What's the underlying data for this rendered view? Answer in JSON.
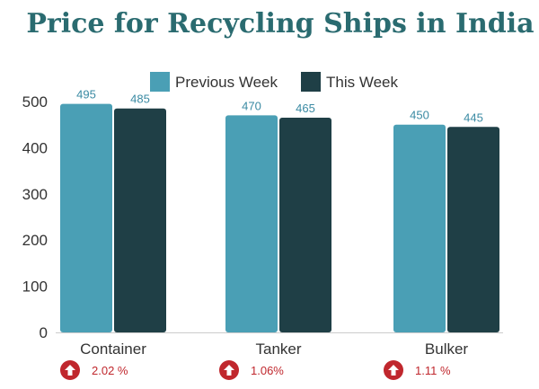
{
  "chart_data": {
    "type": "bar",
    "title": "Price for Recycling Ships in India",
    "categories": [
      "Container",
      "Tanker",
      "Bulker"
    ],
    "series": [
      {
        "name": "Previous Week",
        "values": [
          495,
          470,
          450
        ],
        "labels": [
          "495",
          "470",
          "450"
        ],
        "color": "#4a9fb5"
      },
      {
        "name": "This Week",
        "values": [
          485,
          465,
          445
        ],
        "labels": [
          "485",
          "465",
          "445"
        ],
        "color": "#1f3f46"
      }
    ],
    "ylim": [
      0,
      500
    ],
    "yticks": [
      "0",
      "100",
      "200",
      "300",
      "400",
      "500"
    ],
    "xlabel": "",
    "ylabel": "",
    "grid": false,
    "legend_position": "top",
    "changes": [
      "2.02 %",
      "1.06%",
      "1.11 %"
    ],
    "change_icon": "up-arrow-circle-icon",
    "colors": {
      "title": "#2a6b70",
      "value_label": "#3a8aa3",
      "change": "#c0272d",
      "axis_text": "#333333"
    }
  }
}
